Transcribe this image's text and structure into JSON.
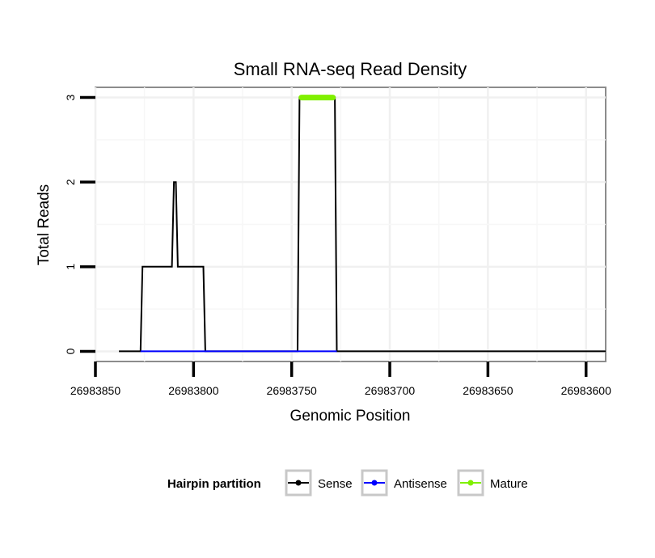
{
  "chart_data": {
    "type": "line",
    "title": "Small RNA-seq Read Density",
    "xlabel": "Genomic Position",
    "ylabel": "Total Reads",
    "xlim": [
      26983850,
      26983590
    ],
    "ylim": [
      -0.12,
      3.12
    ],
    "x_reversed": true,
    "x_ticks": [
      26983850,
      26983800,
      26983750,
      26983700,
      26983650,
      26983600
    ],
    "x_tick_labels": [
      "26983850",
      "26983800",
      "26983750",
      "26983700",
      "26983650",
      "26983600"
    ],
    "y_ticks": [
      0,
      1,
      2,
      3
    ],
    "y_tick_labels": [
      "0",
      "1",
      "2",
      "3"
    ],
    "grid": true,
    "legend": {
      "title": "Hairpin partition",
      "position": "bottom"
    },
    "series": [
      {
        "name": "Sense",
        "color": "#000000",
        "x": [
          26983838,
          26983827,
          26983826,
          26983811,
          26983810,
          26983809,
          26983808,
          26983795,
          26983794,
          26983747,
          26983746,
          26983728,
          26983727,
          26983590
        ],
        "y": [
          0,
          0,
          1,
          1,
          2,
          2,
          1,
          1,
          0,
          0,
          3,
          3,
          0,
          0
        ]
      },
      {
        "name": "Antisense",
        "color": "#0000ff",
        "x": [
          26983827,
          26983794,
          26983747,
          26983727
        ],
        "y": [
          0,
          0,
          0,
          0
        ]
      },
      {
        "name": "Mature",
        "color": "#80f000",
        "x": [
          26983745,
          26983729
        ],
        "y": [
          3,
          3
        ]
      }
    ]
  }
}
